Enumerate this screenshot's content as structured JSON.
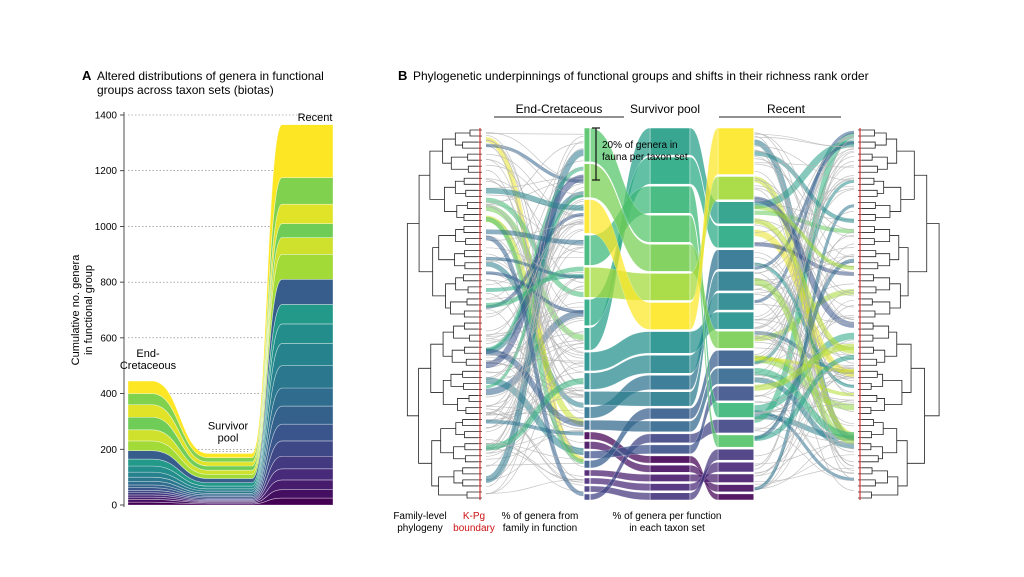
{
  "panel_a": {
    "letter": "A",
    "title_line1": "Altered distributions of genera in functional",
    "title_line2": "groups across taxon sets (biotas)"
  },
  "panel_b": {
    "letter": "B",
    "title": "Phylogenetic underpinnings of functional groups and shifts in their richness rank order",
    "headers": [
      "End-Cretaceous",
      "Survivor pool",
      "Recent"
    ],
    "scale_note_line1": "20% of genera in",
    "scale_note_line2": "fauna per taxon set",
    "footer": {
      "phylogeny_line1": "Family-level",
      "phylogeny_line2": "phylogeny",
      "kpg_line1": "K-Pg",
      "kpg_line2": "boundary",
      "family_pct_line1": "% of genera from",
      "family_pct_line2": "family in function",
      "function_pct_line1": "% of genera per function",
      "function_pct_line2": "in each taxon set"
    }
  },
  "colors": {
    "yellow": "#f2e52a",
    "lightgreen": "#7fd36a",
    "teal": "#2a9a8a",
    "blue": "#3b5c92",
    "purple": "#482878",
    "kpg_red": "#cc1111",
    "gray_link": "#b5b5b5"
  },
  "chart_data": {
    "type": "area",
    "title": "Altered distributions of genera in functional groups across taxon sets (biotas)",
    "ylabel_line1": "Cumulative no. genera",
    "ylabel_line2": "in functional group",
    "ylim": [
      0,
      1400
    ],
    "yticks": [
      0,
      200,
      400,
      600,
      800,
      1000,
      1200,
      1400
    ],
    "ytick_labels": [
      "0",
      "200",
      "400",
      "600",
      "800",
      "1000",
      "1200",
      "1400"
    ],
    "grid": true,
    "stages": [
      "End-Cretaceous",
      "Survivor pool",
      "Recent"
    ],
    "stage_labels": [
      {
        "lines": [
          "End-",
          "Cretaceous"
        ]
      },
      {
        "lines": [
          "Survivor",
          "pool"
        ]
      },
      {
        "lines": [
          "Recent"
        ]
      }
    ],
    "totals": [
      445,
      185,
      1365
    ],
    "group_boundaries": {
      "End-Cretaceous": [
        0,
        10,
        20,
        28,
        36,
        44,
        52,
        62,
        72,
        85,
        100,
        118,
        140,
        165,
        195,
        230,
        270,
        315,
        360,
        400,
        445
      ],
      "Survivor pool": [
        0,
        4,
        8,
        12,
        16,
        20,
        25,
        30,
        36,
        42,
        50,
        58,
        68,
        80,
        95,
        110,
        125,
        140,
        155,
        170,
        185
      ],
      "Recent": [
        0,
        25,
        55,
        90,
        130,
        175,
        230,
        290,
        355,
        420,
        500,
        580,
        650,
        720,
        810,
        900,
        960,
        1010,
        1080,
        1175,
        1365
      ]
    }
  }
}
